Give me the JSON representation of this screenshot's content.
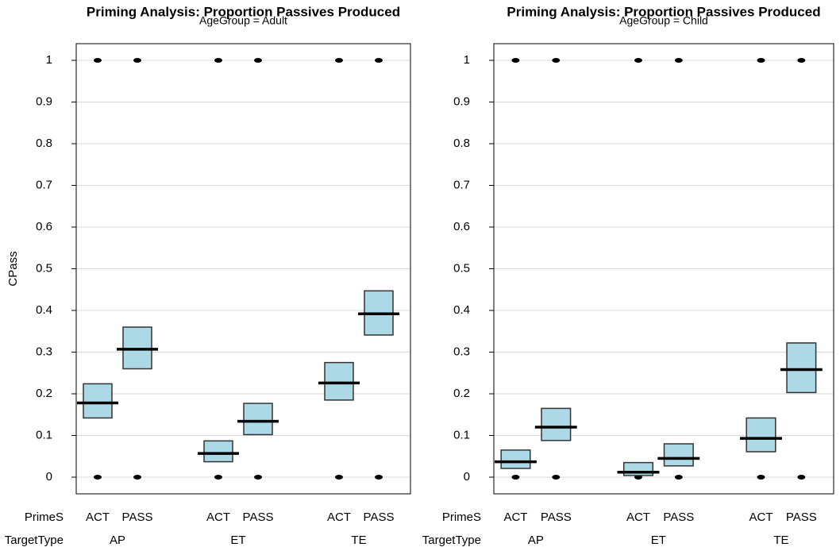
{
  "chart_data": [
    {
      "type": "crossbar",
      "title": "Priming Analysis: Proportion Passives Produced",
      "subtitle": "AgeGroup = Adult",
      "ylabel": "CPass",
      "x_level_labels": [
        "PrimeS",
        "TargetType"
      ],
      "categories": [
        "ACT",
        "PASS",
        "ACT",
        "PASS",
        "ACT",
        "PASS"
      ],
      "groups": [
        "AP",
        "ET",
        "TE"
      ],
      "values": [
        0.178,
        0.307,
        0.057,
        0.134,
        0.226,
        0.392
      ],
      "lower": [
        0.142,
        0.26,
        0.037,
        0.102,
        0.185,
        0.341
      ],
      "upper": [
        0.224,
        0.36,
        0.087,
        0.177,
        0.275,
        0.447
      ],
      "observed": [
        [
          0,
          1
        ],
        [
          0,
          1
        ],
        [
          0,
          1
        ],
        [
          0,
          1
        ],
        [
          0,
          1
        ],
        [
          0,
          1
        ]
      ],
      "ylim": [
        -0.04,
        1.04
      ],
      "yticks": [
        0,
        0.1,
        0.2,
        0.3,
        0.4,
        0.5,
        0.6,
        0.7,
        0.8,
        0.9,
        1
      ],
      "grid": true,
      "color": "#add8e6",
      "line_color": "#000000"
    },
    {
      "type": "crossbar",
      "title": "Priming Analysis: Proportion Passives Produced",
      "subtitle": "AgeGroup = Child",
      "x_level_labels": [
        "PrimeS",
        "TargetType"
      ],
      "categories": [
        "ACT",
        "PASS",
        "ACT",
        "PASS",
        "ACT",
        "PASS"
      ],
      "groups": [
        "AP",
        "ET",
        "TE"
      ],
      "values": [
        0.037,
        0.12,
        0.012,
        0.045,
        0.093,
        0.258
      ],
      "lower": [
        0.021,
        0.088,
        0.004,
        0.027,
        0.061,
        0.203
      ],
      "upper": [
        0.065,
        0.165,
        0.035,
        0.08,
        0.142,
        0.322
      ],
      "observed": [
        [
          0,
          1
        ],
        [
          0,
          1
        ],
        [
          0,
          1
        ],
        [
          0,
          1
        ],
        [
          0,
          1
        ],
        [
          0,
          1
        ]
      ],
      "ylim": [
        -0.04,
        1.04
      ],
      "yticks": [
        0,
        0.1,
        0.2,
        0.3,
        0.4,
        0.5,
        0.6,
        0.7,
        0.8,
        0.9,
        1
      ],
      "grid": true,
      "color": "#add8e6",
      "line_color": "#000000"
    }
  ]
}
